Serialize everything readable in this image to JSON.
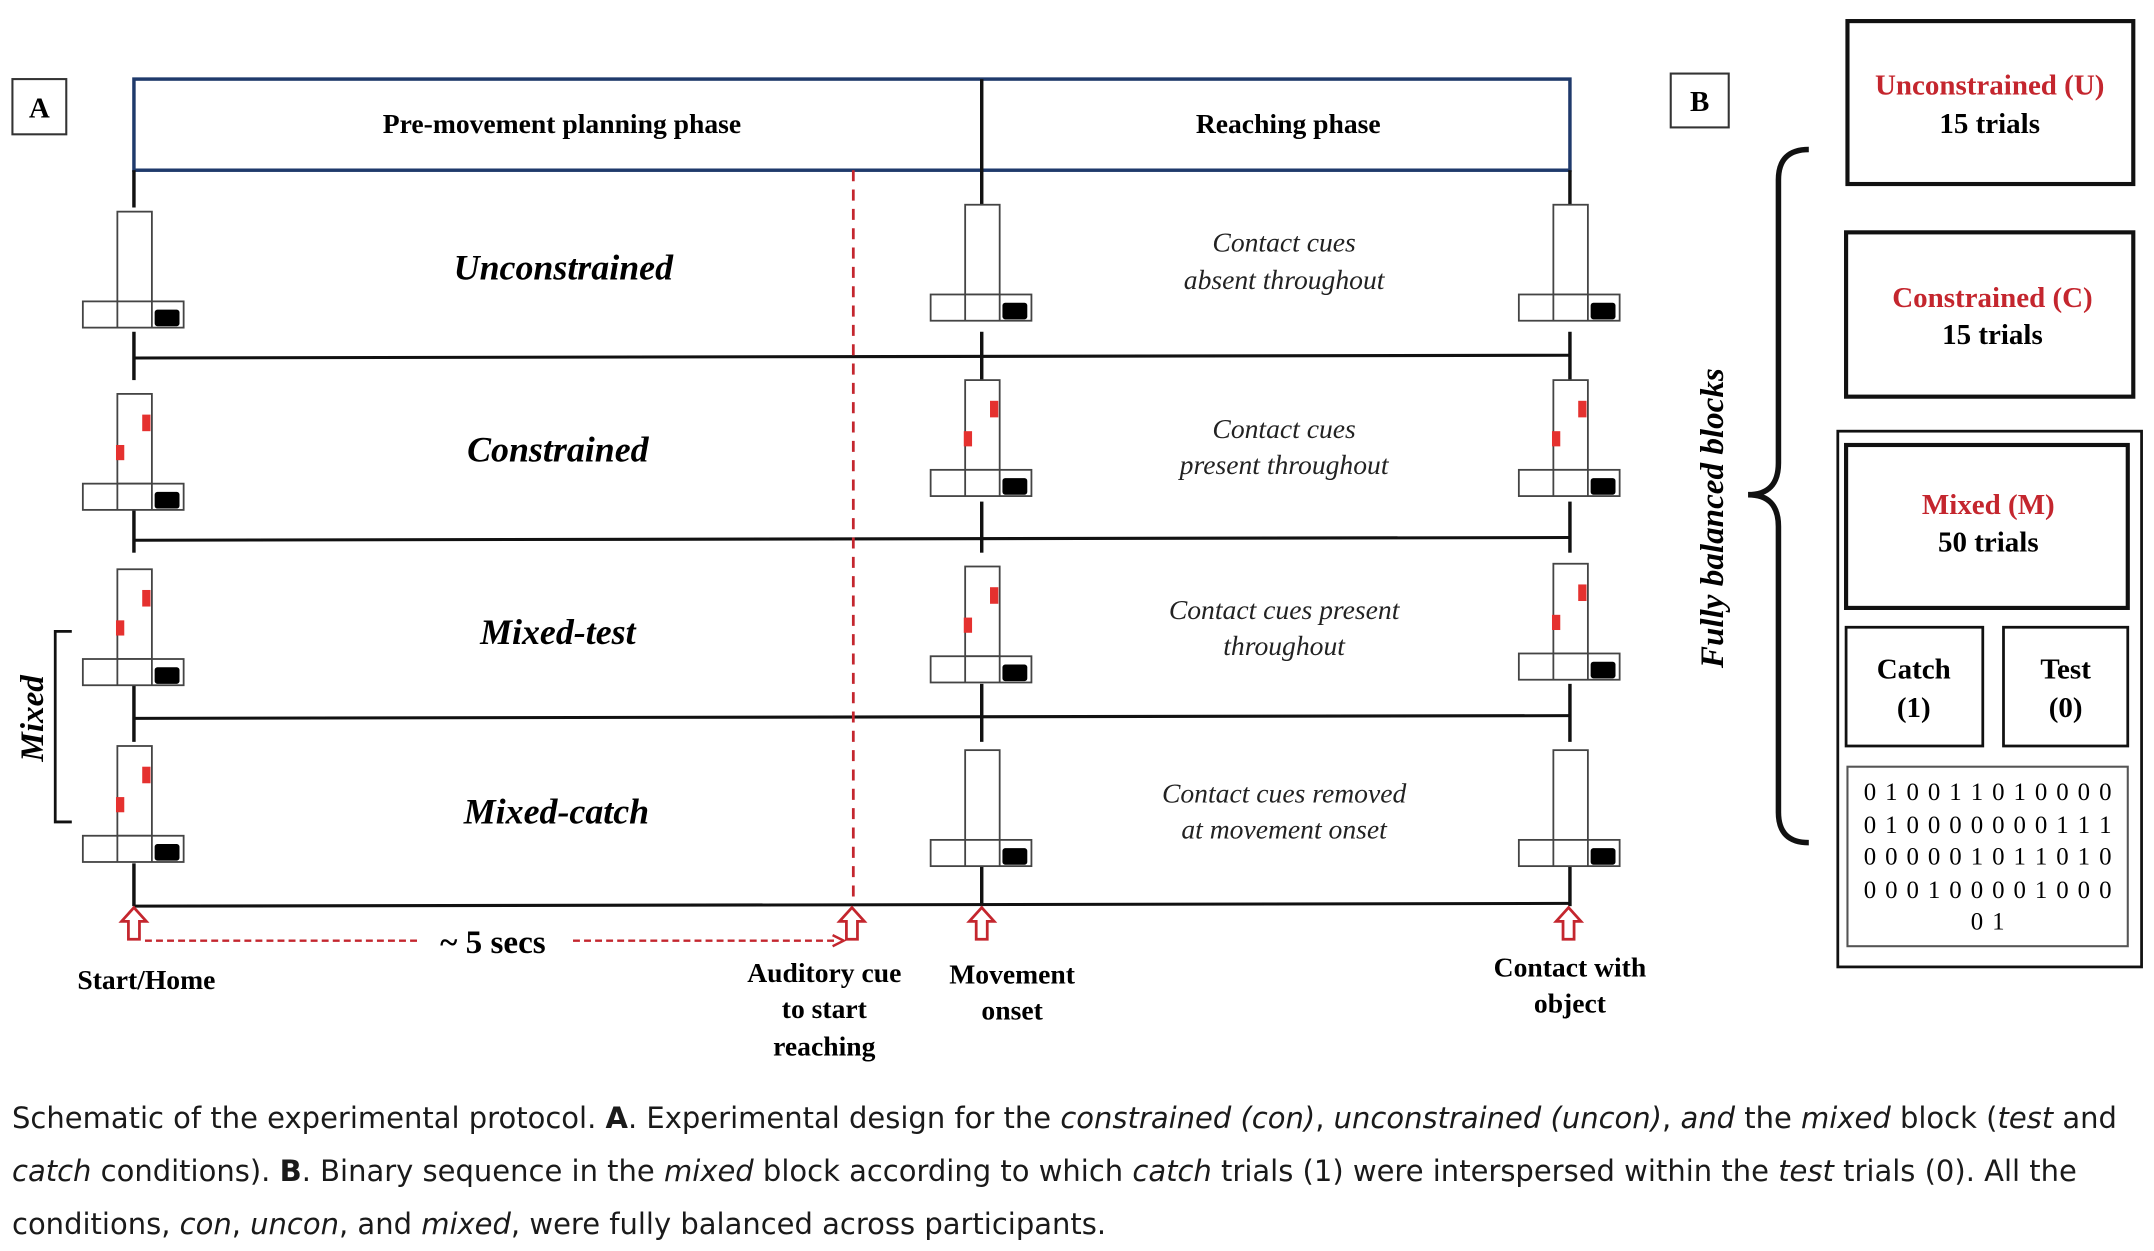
{
  "panel_a": {
    "label": "A",
    "phases": {
      "planning": "Pre-movement planning phase",
      "reaching": "Reaching phase"
    },
    "rows": [
      {
        "title": "Unconstrained",
        "note": [
          "Contact cues",
          "absent throughout"
        ]
      },
      {
        "title": "Constrained",
        "note": [
          "Contact cues",
          "present throughout"
        ]
      },
      {
        "title": "Mixed-test",
        "note": [
          "Contact cues present",
          "throughout"
        ]
      },
      {
        "title": "Mixed-catch",
        "note": [
          "Contact cues removed",
          "at movement onset"
        ]
      }
    ],
    "mixed_label": "Mixed",
    "duration": "~ 5 secs",
    "events": {
      "start": [
        "Start/Home"
      ],
      "auditory": [
        "Auditory cue",
        "to start",
        "reaching"
      ],
      "movement": [
        "Movement",
        "onset"
      ],
      "contact": [
        "Contact with",
        "object"
      ]
    }
  },
  "panel_b": {
    "label": "B",
    "side_label": "Fully balanced blocks",
    "unconstrained": {
      "title": "Unconstrained (U)",
      "count": "15 trials"
    },
    "constrained": {
      "title": "Constrained (C)",
      "count": "15 trials"
    },
    "mixed": {
      "title": "Mixed (M)",
      "count": "50 trials"
    },
    "catch": {
      "title": "Catch",
      "code": "(1)"
    },
    "test": {
      "title": "Test",
      "code": "(0)"
    },
    "sequence": [
      "0 1 0 0 1 1 0 1 0 0 0 0",
      "0 1 0 0 0 0 0 0 0 1 1 1",
      "0 0 0 0 0 1 0 1 1 0 1 0",
      "0 0 0 1 0 0 0 0 1 0 0 0",
      "0 1"
    ]
  },
  "caption": {
    "parts": [
      "Schematic of the experimental protocol. ",
      "A",
      ". Experimental design for the ",
      "constrained (con)",
      ", ",
      "unconstrained (uncon)",
      ", ",
      "and",
      " the ",
      "mixed",
      " block (",
      "test",
      " and ",
      "catch",
      " conditions). ",
      "B",
      ". Binary sequence in the ",
      "mixed",
      " block according to which ",
      "catch",
      " trials (1) were interspersed within the ",
      "test",
      " trials (0). All the conditions, ",
      "con",
      ", ",
      "uncon",
      ", and ",
      "mixed",
      ", were fully balanced across participants."
    ]
  },
  "colors": {
    "accent_red": "#c4262e",
    "header_border": "#1f3a6b",
    "ink": "#111111"
  }
}
